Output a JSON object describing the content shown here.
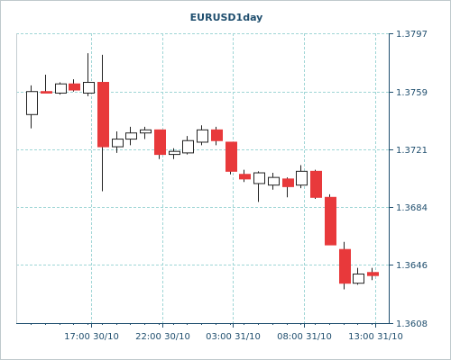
{
  "chart_data": {
    "type": "candlestick",
    "title": "EURUSD1day",
    "colors": {
      "up_body": "#ffffff",
      "down_body": "#e8393b",
      "wick": "#222222",
      "grid": "#9fd6d6",
      "axis": "#1f4e6e",
      "plot_background": "#ffffff"
    },
    "grid": true,
    "y_axis_position": "right",
    "ylim": [
      1.3608,
      1.3797
    ],
    "y_ticks": [
      "1.3797",
      "1.3759",
      "1.3721",
      "1.3684",
      "1.3646",
      "1.3608"
    ],
    "x_ticks": [
      "17:00 30/10",
      "22:00 30/10",
      "03:00 31/10",
      "08:00 31/10",
      "13:00 31/10"
    ],
    "x_tick_bar_index": [
      4.25,
      9.25,
      14.25,
      19.25,
      24.25
    ],
    "candles": [
      {
        "o": 1.3744,
        "h": 1.3763,
        "l": 1.3735,
        "c": 1.3759
      },
      {
        "o": 1.3759,
        "h": 1.377,
        "l": 1.3758,
        "c": 1.3758
      },
      {
        "o": 1.3758,
        "h": 1.3765,
        "l": 1.3757,
        "c": 1.3764
      },
      {
        "o": 1.3764,
        "h": 1.3767,
        "l": 1.3759,
        "c": 1.376
      },
      {
        "o": 1.3758,
        "h": 1.3784,
        "l": 1.3756,
        "c": 1.3765
      },
      {
        "o": 1.3765,
        "h": 1.3783,
        "l": 1.3694,
        "c": 1.3723
      },
      {
        "o": 1.3723,
        "h": 1.3733,
        "l": 1.3719,
        "c": 1.3728
      },
      {
        "o": 1.3728,
        "h": 1.3736,
        "l": 1.3724,
        "c": 1.3732
      },
      {
        "o": 1.3732,
        "h": 1.3736,
        "l": 1.3728,
        "c": 1.3734
      },
      {
        "o": 1.3734,
        "h": 1.3734,
        "l": 1.3715,
        "c": 1.3718
      },
      {
        "o": 1.3718,
        "h": 1.3722,
        "l": 1.3715,
        "c": 1.372
      },
      {
        "o": 1.3719,
        "h": 1.373,
        "l": 1.3718,
        "c": 1.3727
      },
      {
        "o": 1.3726,
        "h": 1.3737,
        "l": 1.3724,
        "c": 1.3734
      },
      {
        "o": 1.3734,
        "h": 1.3736,
        "l": 1.3724,
        "c": 1.3727
      },
      {
        "o": 1.3726,
        "h": 1.3726,
        "l": 1.3705,
        "c": 1.3707
      },
      {
        "o": 1.3705,
        "h": 1.3708,
        "l": 1.37,
        "c": 1.3702
      },
      {
        "o": 1.3699,
        "h": 1.3707,
        "l": 1.3687,
        "c": 1.3706
      },
      {
        "o": 1.3698,
        "h": 1.3706,
        "l": 1.3695,
        "c": 1.3703
      },
      {
        "o": 1.3702,
        "h": 1.3703,
        "l": 1.369,
        "c": 1.3697
      },
      {
        "o": 1.3698,
        "h": 1.3711,
        "l": 1.3696,
        "c": 1.3707
      },
      {
        "o": 1.3707,
        "h": 1.3708,
        "l": 1.3689,
        "c": 1.369
      },
      {
        "o": 1.369,
        "h": 1.3692,
        "l": 1.3659,
        "c": 1.3659
      },
      {
        "o": 1.3656,
        "h": 1.3661,
        "l": 1.363,
        "c": 1.3634
      },
      {
        "o": 1.3634,
        "h": 1.3644,
        "l": 1.3633,
        "c": 1.364
      },
      {
        "o": 1.3641,
        "h": 1.3644,
        "l": 1.3636,
        "c": 1.3639
      }
    ]
  }
}
